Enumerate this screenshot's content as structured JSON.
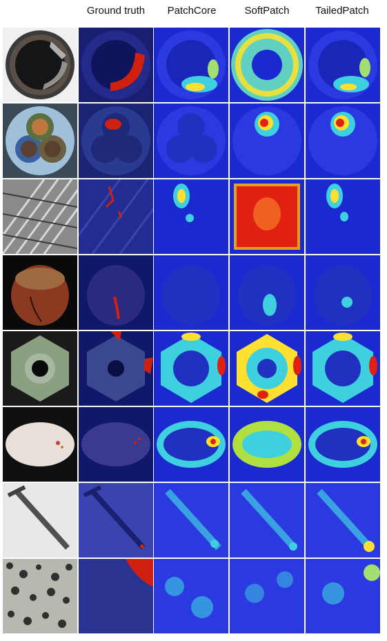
{
  "columns": [
    {
      "key": "input",
      "title": ""
    },
    {
      "key": "gt",
      "title": "Ground truth"
    },
    {
      "key": "patchcore",
      "title": "PatchCore"
    },
    {
      "key": "softpatch",
      "title": "SoftPatch"
    },
    {
      "key": "tailedpatch",
      "title": "TailedPatch"
    }
  ],
  "rows": [
    {
      "object": "bottle"
    },
    {
      "object": "cable"
    },
    {
      "object": "grid"
    },
    {
      "object": "hazelnut"
    },
    {
      "object": "metal_nut"
    },
    {
      "object": "pill"
    },
    {
      "object": "screw"
    },
    {
      "object": "tile"
    }
  ],
  "colors": {
    "heat_low": "#1a2ad0",
    "heat_mid": "#3fd0e0",
    "heat_high": "#ffe030",
    "heat_max": "#e02010",
    "gt_mask": "#d02010"
  }
}
